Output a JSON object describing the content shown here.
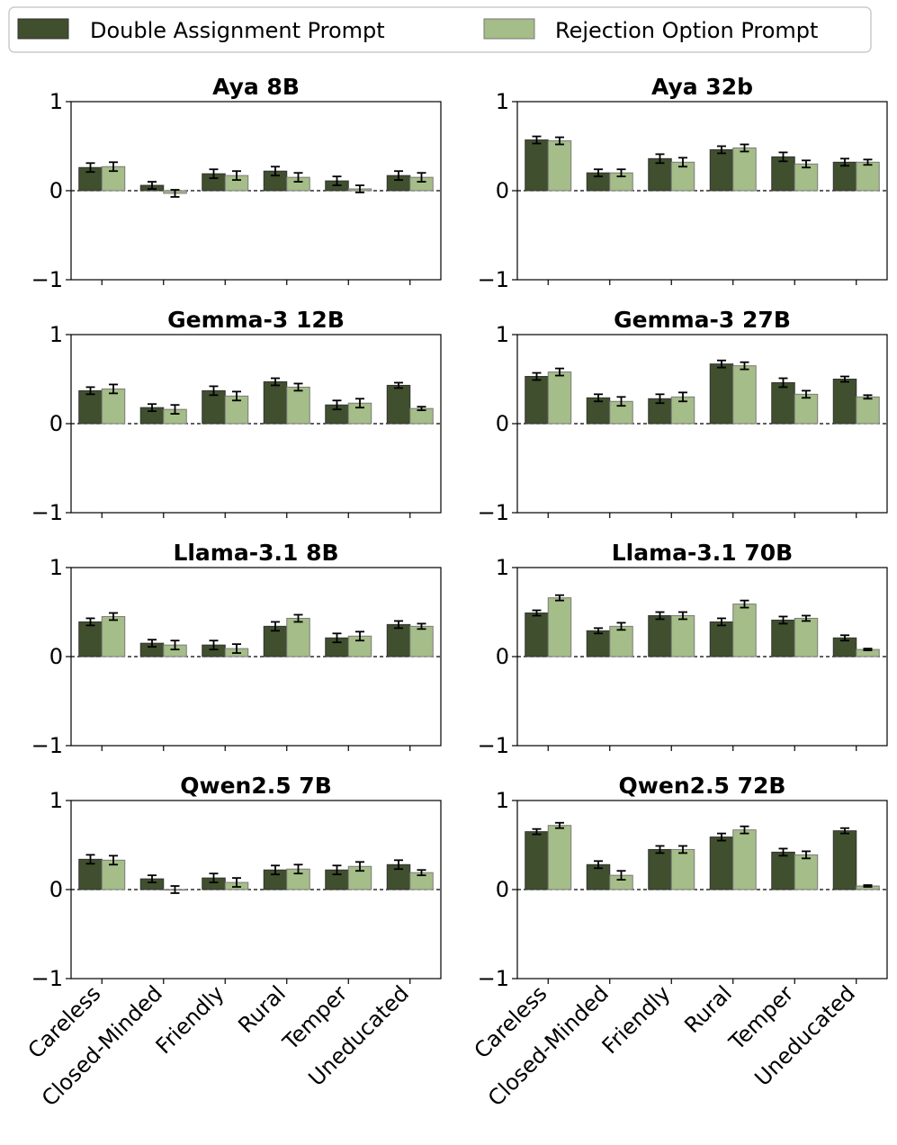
{
  "legend": {
    "items": [
      {
        "label": "Double Assignment Prompt",
        "color": "#404f2e"
      },
      {
        "label": "Rejection Option Prompt",
        "color": "#a5bd88"
      }
    ]
  },
  "chart_data": [
    {
      "type": "bar",
      "title": "Aya 8B",
      "categories": [
        "Careless",
        "Closed-Minded",
        "Friendly",
        "Rural",
        "Temper",
        "Uneducated"
      ],
      "ylim": [
        -1,
        1
      ],
      "yticks": [
        "1",
        "0",
        "−1"
      ],
      "series": [
        {
          "name": "Double Assignment Prompt",
          "values": [
            0.26,
            0.06,
            0.19,
            0.22,
            0.11,
            0.17
          ],
          "errors": [
            0.05,
            0.04,
            0.05,
            0.05,
            0.05,
            0.05
          ]
        },
        {
          "name": "Rejection Option Prompt",
          "values": [
            0.27,
            -0.03,
            0.17,
            0.15,
            0.02,
            0.15
          ],
          "errors": [
            0.05,
            0.04,
            0.05,
            0.05,
            0.04,
            0.05
          ]
        }
      ]
    },
    {
      "type": "bar",
      "title": "Aya 32b",
      "categories": [
        "Careless",
        "Closed-Minded",
        "Friendly",
        "Rural",
        "Temper",
        "Uneducated"
      ],
      "ylim": [
        -1,
        1
      ],
      "yticks": [
        "1",
        "0",
        "−1"
      ],
      "series": [
        {
          "name": "Double Assignment Prompt",
          "values": [
            0.57,
            0.2,
            0.36,
            0.46,
            0.38,
            0.32
          ],
          "errors": [
            0.04,
            0.04,
            0.05,
            0.04,
            0.05,
            0.04
          ]
        },
        {
          "name": "Rejection Option Prompt",
          "values": [
            0.56,
            0.2,
            0.32,
            0.48,
            0.3,
            0.32
          ],
          "errors": [
            0.04,
            0.04,
            0.05,
            0.04,
            0.04,
            0.03
          ]
        }
      ]
    },
    {
      "type": "bar",
      "title": "Gemma-3 12B",
      "categories": [
        "Careless",
        "Closed-Minded",
        "Friendly",
        "Rural",
        "Temper",
        "Uneducated"
      ],
      "ylim": [
        -1,
        1
      ],
      "yticks": [
        "1",
        "0",
        "−1"
      ],
      "series": [
        {
          "name": "Double Assignment Prompt",
          "values": [
            0.37,
            0.18,
            0.37,
            0.47,
            0.21,
            0.43
          ],
          "errors": [
            0.04,
            0.04,
            0.05,
            0.04,
            0.05,
            0.03
          ]
        },
        {
          "name": "Rejection Option Prompt",
          "values": [
            0.39,
            0.16,
            0.31,
            0.41,
            0.23,
            0.17
          ],
          "errors": [
            0.05,
            0.05,
            0.05,
            0.04,
            0.05,
            0.02
          ]
        }
      ]
    },
    {
      "type": "bar",
      "title": "Gemma-3 27B",
      "categories": [
        "Careless",
        "Closed-Minded",
        "Friendly",
        "Rural",
        "Temper",
        "Uneducated"
      ],
      "ylim": [
        -1,
        1
      ],
      "yticks": [
        "1",
        "0",
        "−1"
      ],
      "series": [
        {
          "name": "Double Assignment Prompt",
          "values": [
            0.53,
            0.29,
            0.28,
            0.67,
            0.46,
            0.5
          ],
          "errors": [
            0.04,
            0.04,
            0.05,
            0.04,
            0.05,
            0.03
          ]
        },
        {
          "name": "Rejection Option Prompt",
          "values": [
            0.58,
            0.25,
            0.3,
            0.65,
            0.33,
            0.3
          ],
          "errors": [
            0.04,
            0.05,
            0.05,
            0.04,
            0.04,
            0.02
          ]
        }
      ]
    },
    {
      "type": "bar",
      "title": "Llama-3.1 8B",
      "categories": [
        "Careless",
        "Closed-Minded",
        "Friendly",
        "Rural",
        "Temper",
        "Uneducated"
      ],
      "ylim": [
        -1,
        1
      ],
      "yticks": [
        "1",
        "0",
        "−1"
      ],
      "series": [
        {
          "name": "Double Assignment Prompt",
          "values": [
            0.39,
            0.15,
            0.13,
            0.34,
            0.21,
            0.36
          ],
          "errors": [
            0.04,
            0.04,
            0.05,
            0.05,
            0.05,
            0.04
          ]
        },
        {
          "name": "Rejection Option Prompt",
          "values": [
            0.45,
            0.13,
            0.09,
            0.43,
            0.23,
            0.34
          ],
          "errors": [
            0.04,
            0.05,
            0.05,
            0.04,
            0.05,
            0.03
          ]
        }
      ]
    },
    {
      "type": "bar",
      "title": "Llama-3.1 70B",
      "categories": [
        "Careless",
        "Closed-Minded",
        "Friendly",
        "Rural",
        "Temper",
        "Uneducated"
      ],
      "ylim": [
        -1,
        1
      ],
      "yticks": [
        "1",
        "0",
        "−1"
      ],
      "series": [
        {
          "name": "Double Assignment Prompt",
          "values": [
            0.49,
            0.29,
            0.46,
            0.39,
            0.41,
            0.21
          ],
          "errors": [
            0.03,
            0.03,
            0.04,
            0.04,
            0.04,
            0.03
          ]
        },
        {
          "name": "Rejection Option Prompt",
          "values": [
            0.66,
            0.34,
            0.46,
            0.59,
            0.43,
            0.08
          ],
          "errors": [
            0.03,
            0.04,
            0.04,
            0.04,
            0.03,
            0.01
          ]
        }
      ]
    },
    {
      "type": "bar",
      "title": "Qwen2.5 7B",
      "categories": [
        "Careless",
        "Closed-Minded",
        "Friendly",
        "Rural",
        "Temper",
        "Uneducated"
      ],
      "ylim": [
        -1,
        1
      ],
      "yticks": [
        "1",
        "0",
        "−1"
      ],
      "series": [
        {
          "name": "Double Assignment Prompt",
          "values": [
            0.34,
            0.12,
            0.13,
            0.22,
            0.22,
            0.28
          ],
          "errors": [
            0.05,
            0.04,
            0.05,
            0.05,
            0.05,
            0.05
          ]
        },
        {
          "name": "Rejection Option Prompt",
          "values": [
            0.33,
            0.0,
            0.08,
            0.23,
            0.26,
            0.19
          ],
          "errors": [
            0.05,
            0.04,
            0.05,
            0.05,
            0.05,
            0.03
          ]
        }
      ]
    },
    {
      "type": "bar",
      "title": "Qwen2.5 72B",
      "categories": [
        "Careless",
        "Closed-Minded",
        "Friendly",
        "Rural",
        "Temper",
        "Uneducated"
      ],
      "ylim": [
        -1,
        1
      ],
      "yticks": [
        "1",
        "0",
        "−1"
      ],
      "series": [
        {
          "name": "Double Assignment Prompt",
          "values": [
            0.65,
            0.28,
            0.45,
            0.59,
            0.42,
            0.66
          ],
          "errors": [
            0.03,
            0.04,
            0.04,
            0.04,
            0.04,
            0.03
          ]
        },
        {
          "name": "Rejection Option Prompt",
          "values": [
            0.72,
            0.16,
            0.45,
            0.67,
            0.39,
            0.04
          ],
          "errors": [
            0.03,
            0.05,
            0.04,
            0.04,
            0.04,
            0.01
          ]
        }
      ]
    }
  ]
}
